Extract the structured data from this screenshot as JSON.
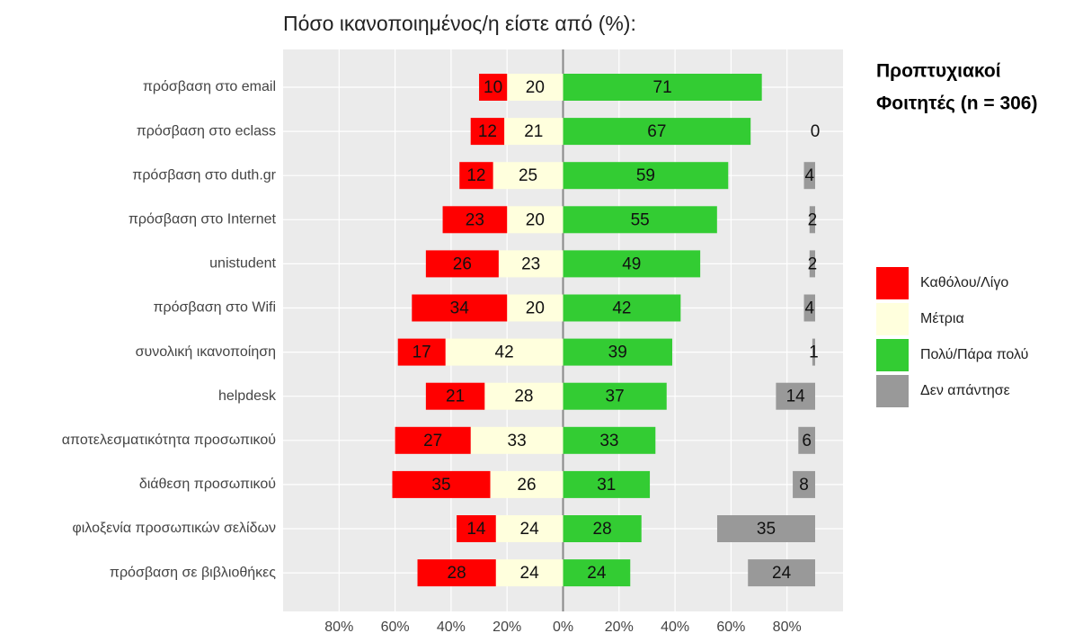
{
  "chart_data": {
    "type": "diverging_bar",
    "title": "Πόσο ικανοποιημένος/η είστε από (%):",
    "annotation": [
      "Προπτυχιακοί",
      "Φοιτητές (n = 306)"
    ],
    "categories": [
      "πρόσβαση στο email",
      "πρόσβαση στο eclass",
      "πρόσβαση στο duth.gr",
      "πρόσβαση στο Internet",
      "unistudent",
      "πρόσβαση στο Wifi",
      "συνολική ικανοποίηση",
      "helpdesk",
      "αποτελεσματικότητα προσωπικού",
      "διάθεση προσωπικού",
      "φιλοξενία προσωπικών σελίδων",
      "πρόσβαση σε βιβλιοθήκες"
    ],
    "series": [
      {
        "name": "Καθόλου/Λίγο",
        "color": "#ff0000",
        "side": "left-outer",
        "values": [
          10,
          12,
          12,
          23,
          26,
          34,
          17,
          21,
          27,
          35,
          14,
          28
        ]
      },
      {
        "name": "Μέτρια",
        "color": "#ffffdd",
        "side": "left-inner",
        "values": [
          20,
          21,
          25,
          20,
          23,
          20,
          42,
          28,
          33,
          26,
          24,
          24
        ]
      },
      {
        "name": "Πολύ/Πάρα πολύ",
        "color": "#33cc33",
        "side": "right",
        "values": [
          71,
          67,
          59,
          55,
          49,
          42,
          39,
          37,
          33,
          31,
          28,
          24
        ]
      },
      {
        "name": "Δεν απάντησε",
        "color": "#999999",
        "side": "edge",
        "values": [
          null,
          0,
          4,
          2,
          2,
          4,
          1,
          14,
          6,
          8,
          35,
          24
        ]
      }
    ],
    "xlim": [
      -100,
      100
    ],
    "xticks": [
      {
        "value": -80,
        "label": "80%"
      },
      {
        "value": -60,
        "label": "60%"
      },
      {
        "value": -40,
        "label": "40%"
      },
      {
        "value": -20,
        "label": "20%"
      },
      {
        "value": 0,
        "label": "0%"
      },
      {
        "value": 20,
        "label": "20%"
      },
      {
        "value": 40,
        "label": "40%"
      },
      {
        "value": 60,
        "label": "60%"
      },
      {
        "value": 80,
        "label": "80%"
      }
    ],
    "grid": true,
    "legend": "right"
  }
}
